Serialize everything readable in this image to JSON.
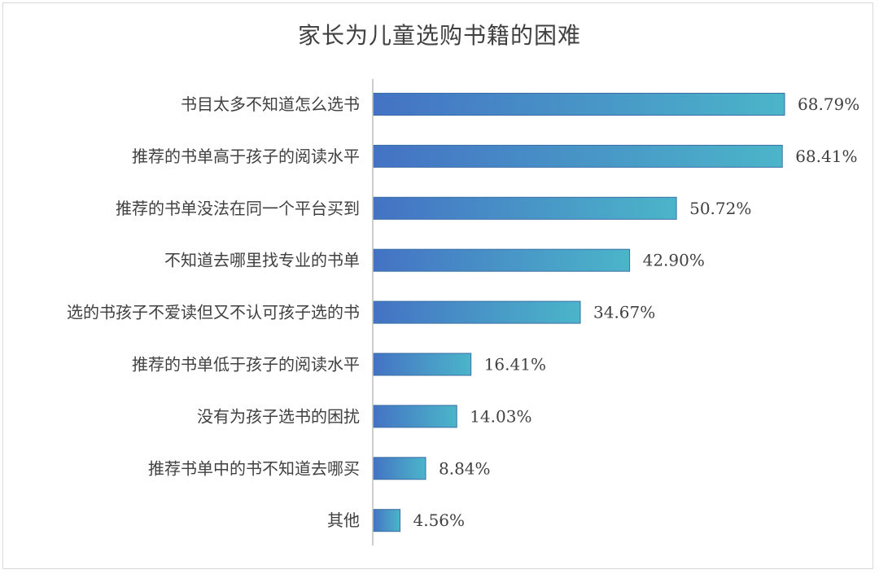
{
  "chart_data": {
    "type": "bar",
    "orientation": "horizontal",
    "title": "家长为儿童选购书籍的困难",
    "categories": [
      "书目太多不知道怎么选书",
      "推荐的书单高于孩子的阅读水平",
      "推荐的书单没法在同一个平台买到",
      "不知道去哪里找专业的书单",
      "选的书孩子不爱读但又不认可孩子选的书",
      "推荐的书单低于孩子的阅读水平",
      "没有为孩子选书的困扰",
      "推荐书单中的书不知道去哪买",
      "其他"
    ],
    "values": [
      68.79,
      68.41,
      50.72,
      42.9,
      34.67,
      16.41,
      14.03,
      8.84,
      4.56
    ],
    "value_labels": [
      "68.79%",
      "68.41%",
      "50.72%",
      "42.90%",
      "34.67%",
      "16.41%",
      "14.03%",
      "8.84%",
      "4.56%"
    ],
    "xlim": [
      0,
      70
    ],
    "grid": false,
    "legend": "none",
    "colors": {
      "bar_start": "#4472c4",
      "bar_end": "#4bb5c9",
      "bar_stroke": "#3a6ea5",
      "axis": "#bfbfbf",
      "text": "#404040",
      "border": "#d9d9d9"
    }
  }
}
